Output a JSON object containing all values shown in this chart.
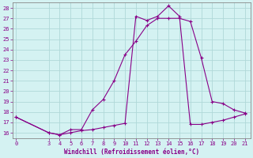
{
  "xlabel": "Windchill (Refroidissement éolien,°C)",
  "x_ticks": [
    0,
    3,
    4,
    5,
    6,
    7,
    8,
    9,
    10,
    11,
    12,
    13,
    14,
    15,
    16,
    17,
    18,
    19,
    20,
    21
  ],
  "ylim": [
    15.5,
    28.5
  ],
  "xlim": [
    -0.3,
    21.5
  ],
  "yticks": [
    16,
    17,
    18,
    19,
    20,
    21,
    22,
    23,
    24,
    25,
    26,
    27,
    28
  ],
  "line_color": "#880088",
  "bg_color": "#d4f2f2",
  "grid_color": "#b0d8d8",
  "series1_x": [
    0,
    3,
    4,
    5,
    6,
    7,
    8,
    9,
    10,
    11,
    12,
    13,
    14,
    15,
    16,
    17,
    18,
    19,
    20,
    21
  ],
  "series1_y": [
    17.5,
    16.0,
    15.8,
    16.3,
    16.3,
    18.2,
    19.2,
    21.0,
    23.5,
    24.8,
    26.3,
    27.0,
    27.0,
    27.0,
    26.7,
    23.2,
    19.0,
    18.8,
    18.2,
    17.9
  ],
  "series2_x": [
    0,
    3,
    4,
    5,
    6,
    7,
    8,
    9,
    10,
    11,
    12,
    13,
    14,
    15,
    16,
    17,
    18,
    19,
    20,
    21
  ],
  "series2_y": [
    17.5,
    16.0,
    15.8,
    16.0,
    16.2,
    16.3,
    16.5,
    16.7,
    16.9,
    27.2,
    26.8,
    27.2,
    28.2,
    27.2,
    16.8,
    16.8,
    17.0,
    17.2,
    17.5,
    17.8
  ]
}
